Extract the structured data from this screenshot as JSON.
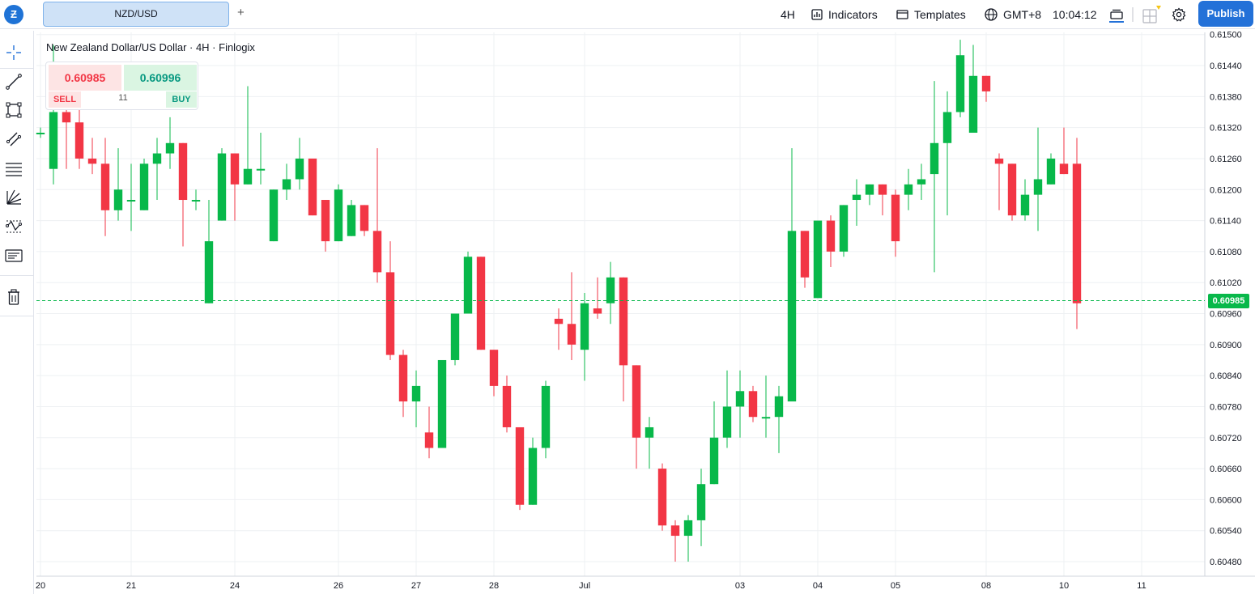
{
  "topbar": {
    "symbol_tab": "NZD/USD",
    "add_tab": "+",
    "interval": "4H",
    "indicators_label": "Indicators",
    "templates_label": "Templates",
    "timezone": "GMT+8",
    "clock": "10:04:12",
    "publish_label": "Publish"
  },
  "chart_header": {
    "title": "New Zealand Dollar/US Dollar · 4H · Finlogix"
  },
  "trade_widget": {
    "sell_price": "0.60985",
    "buy_price": "0.60996",
    "sell_label": "SELL",
    "buy_label": "BUY",
    "spread": "11"
  },
  "colors": {
    "up": "#08b84a",
    "down": "#f23645",
    "accent": "#2371d8",
    "grid": "#eef0f3"
  },
  "left_toolbar": {
    "icons": [
      "crosshair-icon",
      "trend-line-icon",
      "rectangle-icon",
      "ray-icon",
      "horizontal-lines-icon",
      "fib-fan-icon",
      "pattern-icon",
      "text-note-icon",
      "trash-icon"
    ]
  },
  "chart_data": {
    "type": "candlestick",
    "title": "New Zealand Dollar/US Dollar · 4H · Finlogix",
    "y_ticks": [
      "0.61500",
      "0.61440",
      "0.61380",
      "0.61320",
      "0.61260",
      "0.61200",
      "0.61140",
      "0.61080",
      "0.61020",
      "0.60960",
      "0.60900",
      "0.60840",
      "0.60780",
      "0.60720",
      "0.60660",
      "0.60600",
      "0.60540",
      "0.60480"
    ],
    "x_ticks": [
      "20",
      "21",
      "24",
      "26",
      "27",
      "28",
      "Jul",
      "03",
      "04",
      "05",
      "08",
      "10",
      "11"
    ],
    "current_price": "0.60985",
    "ylim": [
      0.6046,
      0.6151
    ],
    "candles": [
      [
        0.6131,
        0.6132,
        0.613,
        0.6131
      ],
      [
        0.6124,
        0.6148,
        0.6121,
        0.6135
      ],
      [
        0.6135,
        0.6142,
        0.6124,
        0.6133
      ],
      [
        0.6133,
        0.6136,
        0.6124,
        0.6126
      ],
      [
        0.6126,
        0.613,
        0.6123,
        0.6125
      ],
      [
        0.6125,
        0.613,
        0.6111,
        0.6116
      ],
      [
        0.6116,
        0.6128,
        0.6114,
        0.612
      ],
      [
        0.6118,
        0.6125,
        0.6112,
        0.6118
      ],
      [
        0.6116,
        0.6126,
        0.6116,
        0.6125
      ],
      [
        0.6125,
        0.613,
        0.6118,
        0.6127
      ],
      [
        0.6127,
        0.6134,
        0.6124,
        0.6129
      ],
      [
        0.6129,
        0.6129,
        0.6109,
        0.6118
      ],
      [
        0.6118,
        0.612,
        0.6116,
        0.6118
      ],
      [
        0.6098,
        0.6118,
        0.6098,
        0.611
      ],
      [
        0.6114,
        0.6128,
        0.6114,
        0.6127
      ],
      [
        0.6127,
        0.6127,
        0.6114,
        0.6121
      ],
      [
        0.6121,
        0.614,
        0.6121,
        0.6124
      ],
      [
        0.6124,
        0.6131,
        0.6121,
        0.6124
      ],
      [
        0.611,
        0.612,
        0.611,
        0.612
      ],
      [
        0.612,
        0.6125,
        0.6118,
        0.6122
      ],
      [
        0.6122,
        0.613,
        0.612,
        0.6126
      ],
      [
        0.6126,
        0.6126,
        0.6115,
        0.6115
      ],
      [
        0.6118,
        0.6118,
        0.6108,
        0.611
      ],
      [
        0.611,
        0.6121,
        0.611,
        0.612
      ],
      [
        0.6111,
        0.6118,
        0.6111,
        0.6117
      ],
      [
        0.6117,
        0.6117,
        0.6111,
        0.6112
      ],
      [
        0.6112,
        0.6128,
        0.6102,
        0.6104
      ],
      [
        0.6104,
        0.611,
        0.6087,
        0.6088
      ],
      [
        0.6088,
        0.6089,
        0.6076,
        0.6079
      ],
      [
        0.6079,
        0.6085,
        0.6074,
        0.6082
      ],
      [
        0.6073,
        0.6078,
        0.6068,
        0.607
      ],
      [
        0.607,
        0.6087,
        0.607,
        0.6087
      ],
      [
        0.6087,
        0.6096,
        0.6086,
        0.6096
      ],
      [
        0.6096,
        0.6108,
        0.6096,
        0.6107
      ],
      [
        0.6107,
        0.6107,
        0.6089,
        0.6089
      ],
      [
        0.6089,
        0.6089,
        0.608,
        0.6082
      ],
      [
        0.6082,
        0.6084,
        0.6073,
        0.6074
      ],
      [
        0.6074,
        0.6074,
        0.6058,
        0.6059
      ],
      [
        0.6059,
        0.6072,
        0.6059,
        0.607
      ],
      [
        0.607,
        0.6083,
        0.6068,
        0.6082
      ],
      [
        0.6095,
        0.6097,
        0.6089,
        0.6094
      ],
      [
        0.6094,
        0.6104,
        0.6087,
        0.609
      ],
      [
        0.6089,
        0.61,
        0.6083,
        0.6098
      ],
      [
        0.6097,
        0.6103,
        0.6095,
        0.6096
      ],
      [
        0.6098,
        0.6106,
        0.6094,
        0.6103
      ],
      [
        0.6103,
        0.6103,
        0.6079,
        0.6086
      ],
      [
        0.6086,
        0.6086,
        0.6066,
        0.6072
      ],
      [
        0.6072,
        0.6076,
        0.6066,
        0.6074
      ],
      [
        0.6066,
        0.6067,
        0.6054,
        0.6055
      ],
      [
        0.6055,
        0.6056,
        0.6048,
        0.6053
      ],
      [
        0.6053,
        0.6057,
        0.6048,
        0.6056
      ],
      [
        0.6056,
        0.6066,
        0.6051,
        0.6063
      ],
      [
        0.6063,
        0.6079,
        0.6063,
        0.6072
      ],
      [
        0.6072,
        0.6085,
        0.607,
        0.6078
      ],
      [
        0.6078,
        0.6085,
        0.6072,
        0.6081
      ],
      [
        0.6081,
        0.6082,
        0.6075,
        0.6076
      ],
      [
        0.6076,
        0.6084,
        0.6072,
        0.6076
      ],
      [
        0.6076,
        0.6082,
        0.6069,
        0.608
      ],
      [
        0.6079,
        0.6128,
        0.6079,
        0.6112
      ],
      [
        0.6112,
        0.6112,
        0.6101,
        0.6103
      ],
      [
        0.6099,
        0.6114,
        0.6099,
        0.6114
      ],
      [
        0.6114,
        0.6115,
        0.6105,
        0.6108
      ],
      [
        0.6108,
        0.6117,
        0.6107,
        0.6117
      ],
      [
        0.6118,
        0.6122,
        0.6113,
        0.6119
      ],
      [
        0.6119,
        0.6121,
        0.6117,
        0.6121
      ],
      [
        0.6121,
        0.6121,
        0.6115,
        0.6119
      ],
      [
        0.6119,
        0.612,
        0.6107,
        0.611
      ],
      [
        0.6119,
        0.6124,
        0.6116,
        0.6121
      ],
      [
        0.6121,
        0.6125,
        0.6118,
        0.6122
      ],
      [
        0.6123,
        0.6141,
        0.6104,
        0.6129
      ],
      [
        0.6129,
        0.6139,
        0.6115,
        0.6135
      ],
      [
        0.6135,
        0.6149,
        0.6134,
        0.6146
      ],
      [
        0.6131,
        0.6148,
        0.6131,
        0.6142
      ],
      [
        0.6142,
        0.6142,
        0.6137,
        0.6139
      ],
      [
        0.6126,
        0.6127,
        0.6116,
        0.6125
      ],
      [
        0.6125,
        0.6125,
        0.6114,
        0.6115
      ],
      [
        0.6115,
        0.6122,
        0.6114,
        0.6119
      ],
      [
        0.6119,
        0.6132,
        0.6112,
        0.6122
      ],
      [
        0.6121,
        0.6127,
        0.6121,
        0.6126
      ],
      [
        0.6125,
        0.6132,
        0.6123,
        0.6123
      ],
      [
        0.6125,
        0.613,
        0.6093,
        0.6098
      ]
    ]
  }
}
